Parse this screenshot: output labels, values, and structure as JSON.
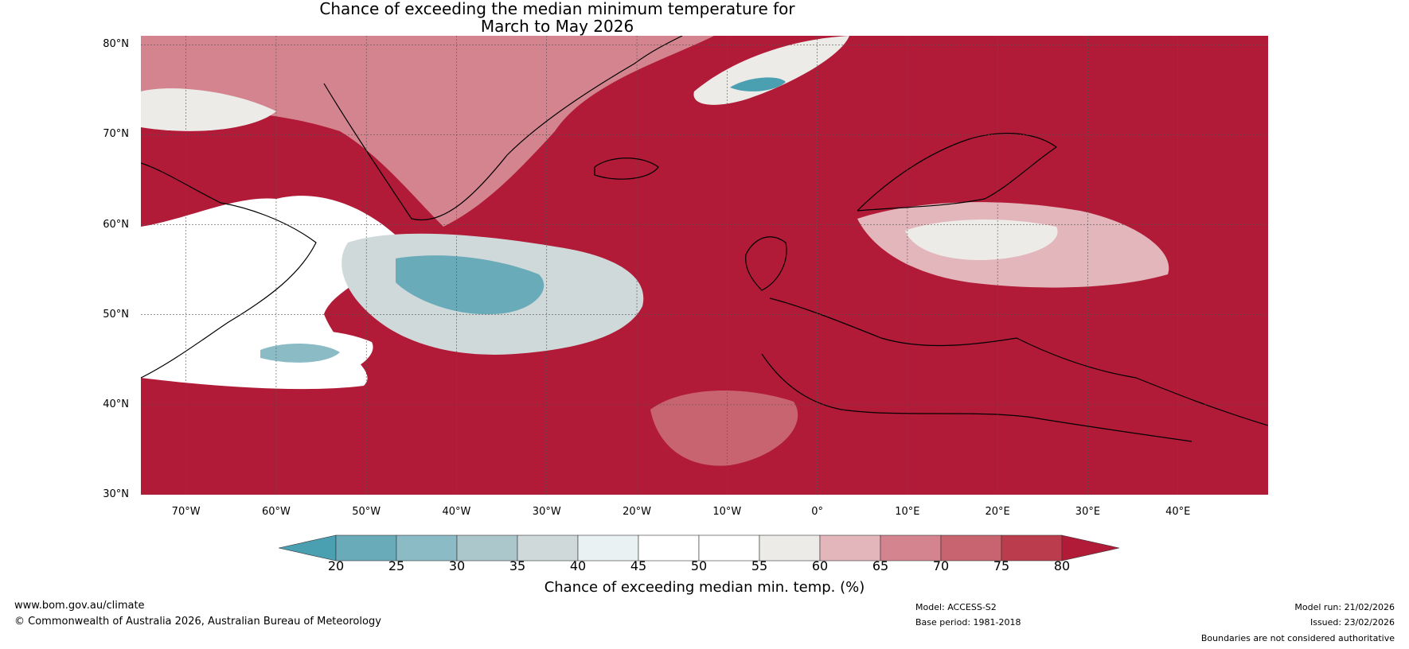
{
  "title": {
    "line1": "Chance of exceeding the median minimum temperature for",
    "line2": "March to May 2026"
  },
  "latitude_labels": [
    "80°N",
    "70°N",
    "60°N",
    "50°N",
    "40°N",
    "30°N"
  ],
  "longitude_labels": [
    "70°W",
    "60°W",
    "50°W",
    "40°W",
    "30°W",
    "20°W",
    "10°W",
    "0°",
    "10°E",
    "20°E",
    "30°E",
    "40°E"
  ],
  "colorbar": {
    "ticks": [
      "20",
      "25",
      "30",
      "35",
      "40",
      "45",
      "50",
      "55",
      "60",
      "65",
      "70",
      "75",
      "80"
    ],
    "label": "Chance of exceeding median min. temp. (%)",
    "colors": {
      "lt20": "#4a9fb1",
      "20-25": "#6aabba",
      "25-30": "#8bbcc6",
      "30-35": "#acc7cc",
      "35-40": "#d0d9da",
      "40-45": "#e9f1f3",
      "45-50": "#ffffff",
      "50-55": "#ffffff",
      "55-60": "#ecebe8",
      "60-65": "#e2b6bb",
      "65-70": "#d4848f",
      "70-75": "#c7646f",
      "75-80": "#bb3d4d",
      "gt80": "#b11b37"
    }
  },
  "map": {
    "extent": {
      "lon": [
        -75,
        50
      ],
      "lat": [
        30,
        81
      ]
    },
    "background_category": "gt80",
    "regions": [
      {
        "name": "greenland-interior",
        "category": "65-70"
      },
      {
        "name": "canadian-arctic-west",
        "category": "55-60"
      },
      {
        "name": "svalbard-sea-anomaly",
        "category": "55-60"
      },
      {
        "name": "svalbard-sea-core",
        "category": "lt20"
      },
      {
        "name": "labrador-anomaly",
        "category": "45-50"
      },
      {
        "name": "north-atlantic-anomaly",
        "category": "35-40"
      },
      {
        "name": "north-atlantic-core",
        "category": "20-25"
      },
      {
        "name": "newfoundland-south-anomaly",
        "category": "45-50"
      },
      {
        "name": "newfoundland-south-core",
        "category": "25-30"
      },
      {
        "name": "baltic-anomaly",
        "category": "60-65"
      },
      {
        "name": "baltic-core",
        "category": "55-60"
      },
      {
        "name": "north-africa-patch",
        "category": "70-75"
      }
    ]
  },
  "footer": {
    "website": "www.bom.gov.au/climate",
    "copyright": "© Commonwealth of Australia 2026, Australian Bureau of Meteorology",
    "model": "Model: ACCESS-S2",
    "base_period": "Base period: 1981-2018",
    "model_run": "Model run: 21/02/2026",
    "issued": "Issued: 23/02/2026",
    "disclaimer": "Boundaries are not considered authoritative"
  }
}
